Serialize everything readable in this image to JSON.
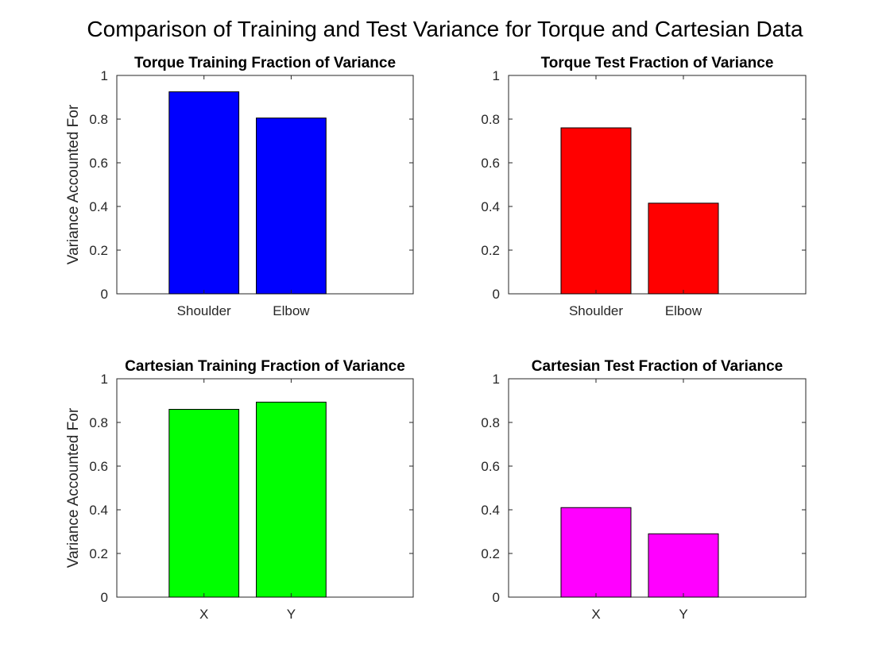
{
  "figure": {
    "title": "Comparison of Training and Test Variance for Torque and Cartesian Data"
  },
  "chart_data": [
    {
      "type": "bar",
      "title": "Torque Training Fraction of Variance",
      "ylabel": "Variance Accounted For",
      "xlabel": "",
      "categories": [
        "Shoulder",
        "Elbow"
      ],
      "values": [
        0.925,
        0.805
      ],
      "ylim": [
        0,
        1
      ],
      "yticks": [
        0,
        0.2,
        0.4,
        0.6,
        0.8,
        1
      ],
      "ytick_labels": [
        "0",
        "0.2",
        "0.4",
        "0.6",
        "0.8",
        "1"
      ],
      "color": "#0000ff",
      "grid": false
    },
    {
      "type": "bar",
      "title": "Torque Test Fraction of Variance",
      "ylabel": "",
      "xlabel": "",
      "categories": [
        "Shoulder",
        "Elbow"
      ],
      "values": [
        0.76,
        0.415
      ],
      "ylim": [
        0,
        1
      ],
      "yticks": [
        0,
        0.2,
        0.4,
        0.6,
        0.8,
        1
      ],
      "ytick_labels": [
        "0",
        "0.2",
        "0.4",
        "0.6",
        "0.8",
        "1"
      ],
      "color": "#ff0000",
      "grid": false
    },
    {
      "type": "bar",
      "title": "Cartesian Training Fraction of Variance",
      "ylabel": "Variance Accounted For",
      "xlabel": "",
      "categories": [
        "X",
        "Y"
      ],
      "values": [
        0.86,
        0.893
      ],
      "ylim": [
        0,
        1
      ],
      "yticks": [
        0,
        0.2,
        0.4,
        0.6,
        0.8,
        1
      ],
      "ytick_labels": [
        "0",
        "0.2",
        "0.4",
        "0.6",
        "0.8",
        "1"
      ],
      "color": "#00ff00",
      "grid": false
    },
    {
      "type": "bar",
      "title": "Cartesian Test Fraction of Variance",
      "ylabel": "",
      "xlabel": "",
      "categories": [
        "X",
        "Y"
      ],
      "values": [
        0.41,
        0.29
      ],
      "ylim": [
        0,
        1
      ],
      "yticks": [
        0,
        0.2,
        0.4,
        0.6,
        0.8,
        1
      ],
      "ytick_labels": [
        "0",
        "0.2",
        "0.4",
        "0.6",
        "0.8",
        "1"
      ],
      "color": "#ff00ff",
      "grid": false
    }
  ]
}
